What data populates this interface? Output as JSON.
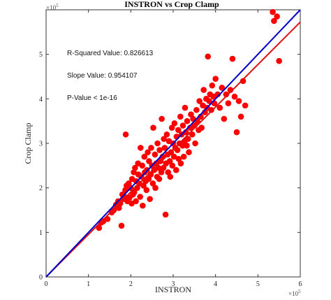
{
  "chart_data": {
    "type": "scatter",
    "title": "INSTRON vs Crop Clamp",
    "xlabel": "INSTRON",
    "ylabel": "Crop Clamp",
    "x_multiplier": "×10",
    "x_multiplier_exp": "5",
    "y_multiplier": "×10",
    "y_multiplier_exp": "5",
    "xlim": [
      0,
      6
    ],
    "ylim": [
      0,
      6
    ],
    "xticks": [
      0,
      1,
      2,
      3,
      4,
      5,
      6
    ],
    "yticks": [
      0,
      1,
      2,
      3,
      4,
      5
    ],
    "grid": false,
    "annotations": [
      "R-Squared Value: 0.826613",
      "Slope Value: 0.954107",
      "P-Value < 1e-16"
    ],
    "colors": {
      "points": "#ff0000",
      "fit_line": "#dd1111",
      "identity_line": "#0000cc"
    },
    "lines": [
      {
        "kind": "fit",
        "slope": 0.954107,
        "intercept": 0.0,
        "color": "#dd1111"
      },
      {
        "kind": "identity",
        "slope": 1.0,
        "intercept": 0.0,
        "color": "#0000cc"
      }
    ],
    "points": [
      [
        1.25,
        1.1
      ],
      [
        1.3,
        1.22
      ],
      [
        1.35,
        1.25
      ],
      [
        1.45,
        1.3
      ],
      [
        1.55,
        1.45
      ],
      [
        1.6,
        1.5
      ],
      [
        1.65,
        1.62
      ],
      [
        1.7,
        1.7
      ],
      [
        1.72,
        1.55
      ],
      [
        1.75,
        1.65
      ],
      [
        1.78,
        1.15
      ],
      [
        1.8,
        1.85
      ],
      [
        1.82,
        1.75
      ],
      [
        1.85,
        1.8
      ],
      [
        1.87,
        1.95
      ],
      [
        1.88,
        3.2
      ],
      [
        1.9,
        2.05
      ],
      [
        1.92,
        1.7
      ],
      [
        1.95,
        2.1
      ],
      [
        1.97,
        1.78
      ],
      [
        2.0,
        2.0
      ],
      [
        2.02,
        1.65
      ],
      [
        2.03,
        2.2
      ],
      [
        2.05,
        1.85
      ],
      [
        2.07,
        2.35
      ],
      [
        2.08,
        1.9
      ],
      [
        2.1,
        2.45
      ],
      [
        2.12,
        1.7
      ],
      [
        2.13,
        2.15
      ],
      [
        2.15,
        2.0
      ],
      [
        2.17,
        2.55
      ],
      [
        2.18,
        2.3
      ],
      [
        2.2,
        2.1
      ],
      [
        2.22,
        1.8
      ],
      [
        2.23,
        2.9
      ],
      [
        2.25,
        2.25
      ],
      [
        2.27,
        2.5
      ],
      [
        2.28,
        1.6
      ],
      [
        2.3,
        2.05
      ],
      [
        2.32,
        2.7
      ],
      [
        2.33,
        2.35
      ],
      [
        2.35,
        2.15
      ],
      [
        2.37,
        1.95
      ],
      [
        2.38,
        2.4
      ],
      [
        2.4,
        2.8
      ],
      [
        2.42,
        2.2
      ],
      [
        2.43,
        2.6
      ],
      [
        2.45,
        1.75
      ],
      [
        2.47,
        2.3
      ],
      [
        2.48,
        2.9
      ],
      [
        2.5,
        2.5
      ],
      [
        2.52,
        2.1
      ],
      [
        2.53,
        3.35
      ],
      [
        2.55,
        2.4
      ],
      [
        2.57,
        2.75
      ],
      [
        2.58,
        2.0
      ],
      [
        2.6,
        2.55
      ],
      [
        2.62,
        2.25
      ],
      [
        2.63,
        3.0
      ],
      [
        2.65,
        2.45
      ],
      [
        2.67,
        2.2
      ],
      [
        2.68,
        2.85
      ],
      [
        2.7,
        2.6
      ],
      [
        2.72,
        2.35
      ],
      [
        2.73,
        3.55
      ],
      [
        2.75,
        2.7
      ],
      [
        2.77,
        2.45
      ],
      [
        2.78,
        3.1
      ],
      [
        2.8,
        2.9
      ],
      [
        2.82,
        1.4
      ],
      [
        2.83,
        2.55
      ],
      [
        2.85,
        3.2
      ],
      [
        2.87,
        2.75
      ],
      [
        2.88,
        2.35
      ],
      [
        2.9,
        3.05
      ],
      [
        2.92,
        2.6
      ],
      [
        2.93,
        2.25
      ],
      [
        2.95,
        2.8
      ],
      [
        2.97,
        3.35
      ],
      [
        2.98,
        2.5
      ],
      [
        3.0,
        3.0
      ],
      [
        3.02,
        2.7
      ],
      [
        3.03,
        3.45
      ],
      [
        3.05,
        2.9
      ],
      [
        3.07,
        2.4
      ],
      [
        3.08,
        3.15
      ],
      [
        3.1,
        2.85
      ],
      [
        3.12,
        3.3
      ],
      [
        3.13,
        2.65
      ],
      [
        3.15,
        3.0
      ],
      [
        3.17,
        3.6
      ],
      [
        3.18,
        2.55
      ],
      [
        3.2,
        3.2
      ],
      [
        3.22,
        2.95
      ],
      [
        3.23,
        3.4
      ],
      [
        3.25,
        2.7
      ],
      [
        3.27,
        3.05
      ],
      [
        3.28,
        3.8
      ],
      [
        3.3,
        3.25
      ],
      [
        3.32,
        2.95
      ],
      [
        3.33,
        3.5
      ],
      [
        3.35,
        3.1
      ],
      [
        3.37,
        2.8
      ],
      [
        3.4,
        3.35
      ],
      [
        3.42,
        3.65
      ],
      [
        3.45,
        3.2
      ],
      [
        3.47,
        3.55
      ],
      [
        3.5,
        3.4
      ],
      [
        3.52,
        3.0
      ],
      [
        3.55,
        3.75
      ],
      [
        3.57,
        3.5
      ],
      [
        3.6,
        3.3
      ],
      [
        3.62,
        3.95
      ],
      [
        3.65,
        3.6
      ],
      [
        3.67,
        3.35
      ],
      [
        3.7,
        3.85
      ],
      [
        3.72,
        4.2
      ],
      [
        3.75,
        3.7
      ],
      [
        3.78,
        4.0
      ],
      [
        3.8,
        3.8
      ],
      [
        3.82,
        4.95
      ],
      [
        3.85,
        3.95
      ],
      [
        3.87,
        4.1
      ],
      [
        3.9,
        3.75
      ],
      [
        3.92,
        4.3
      ],
      [
        3.95,
        4.05
      ],
      [
        3.97,
        3.9
      ],
      [
        4.0,
        4.45
      ],
      [
        4.05,
        4.1
      ],
      [
        4.1,
        3.8
      ],
      [
        4.15,
        4.25
      ],
      [
        4.2,
        3.55
      ],
      [
        4.25,
        4.1
      ],
      [
        4.3,
        3.9
      ],
      [
        4.35,
        4.2
      ],
      [
        4.4,
        4.9
      ],
      [
        4.45,
        4.05
      ],
      [
        4.5,
        3.25
      ],
      [
        4.55,
        3.95
      ],
      [
        4.6,
        3.6
      ],
      [
        4.65,
        4.4
      ],
      [
        4.7,
        3.85
      ],
      [
        5.35,
        5.95
      ],
      [
        5.38,
        5.75
      ],
      [
        5.45,
        5.85
      ],
      [
        5.5,
        4.85
      ]
    ]
  }
}
